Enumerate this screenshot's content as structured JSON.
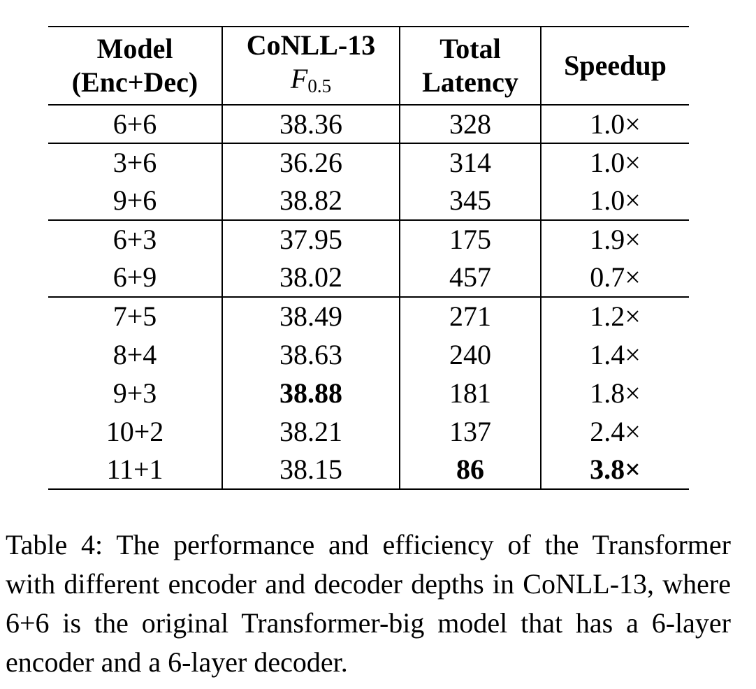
{
  "table": {
    "headers": {
      "model": [
        "Model",
        "(Enc+Dec)"
      ],
      "conll": [
        "CoNLL-13",
        "F",
        "0.5"
      ],
      "latency": [
        "Total",
        "Latency"
      ],
      "speedup": "Speedup"
    },
    "groups": [
      [
        [
          "6+6",
          "38.36",
          "328",
          "1.0×"
        ]
      ],
      [
        [
          "3+6",
          "36.26",
          "314",
          "1.0×"
        ],
        [
          "9+6",
          "38.82",
          "345",
          "1.0×"
        ]
      ],
      [
        [
          "6+3",
          "37.95",
          "175",
          "1.9×"
        ],
        [
          "6+9",
          "38.02",
          "457",
          "0.7×"
        ]
      ],
      [
        [
          "7+5",
          "38.49",
          "271",
          "1.2×"
        ],
        [
          "8+4",
          "38.63",
          "240",
          "1.4×"
        ],
        [
          "9+3",
          "38.88",
          "181",
          "1.8×"
        ],
        [
          "10+2",
          "38.21",
          "137",
          "2.4×"
        ],
        [
          "11+1",
          "38.15",
          "86",
          "3.8×"
        ]
      ]
    ]
  },
  "caption": "Table 4: The performance and efficiency of the Transformer with different encoder and decoder depths in CoNLL-13, where 6+6 is the original Transformer-big model that has a 6-layer encoder and a 6-layer decoder."
}
